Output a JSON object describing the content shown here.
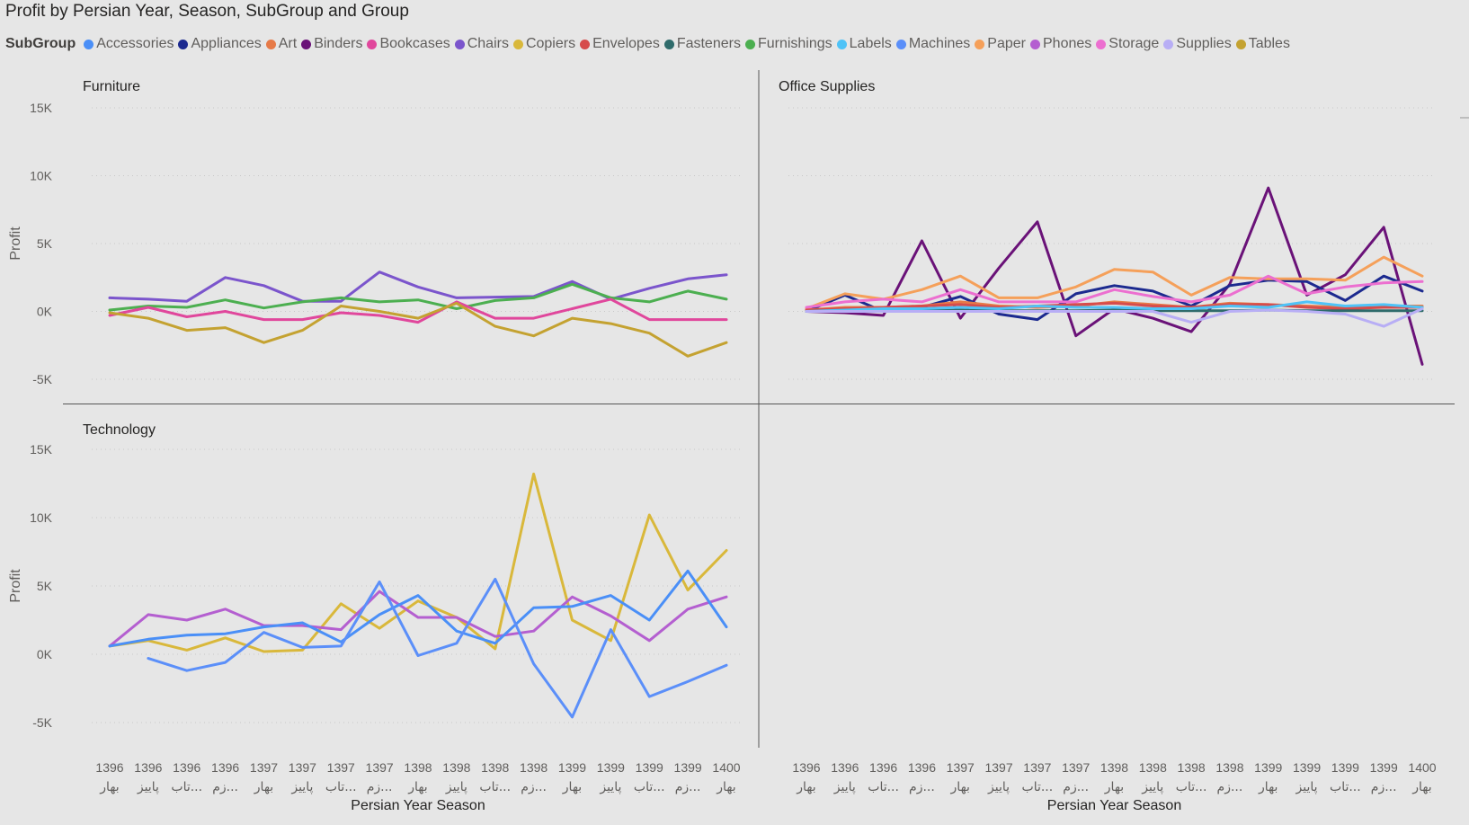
{
  "chart_data": {
    "type": "line",
    "title": "Profit by Persian Year, Season, SubGroup and Group",
    "legend_title": "SubGroup",
    "legend": [
      {
        "name": "Accessories",
        "color": "#4a8ff7"
      },
      {
        "name": "Appliances",
        "color": "#1c2a8f"
      },
      {
        "name": "Art",
        "color": "#e67a48"
      },
      {
        "name": "Binders",
        "color": "#6a1278"
      },
      {
        "name": "Bookcases",
        "color": "#e0479c"
      },
      {
        "name": "Chairs",
        "color": "#7b55cc"
      },
      {
        "name": "Copiers",
        "color": "#d9b83b"
      },
      {
        "name": "Envelopes",
        "color": "#d64c4c"
      },
      {
        "name": "Fasteners",
        "color": "#2f6b6b"
      },
      {
        "name": "Furnishings",
        "color": "#4caf50"
      },
      {
        "name": "Labels",
        "color": "#4fc3f7"
      },
      {
        "name": "Machines",
        "color": "#5b8ff9"
      },
      {
        "name": "Paper",
        "color": "#f5a05a"
      },
      {
        "name": "Phones",
        "color": "#b45fd0"
      },
      {
        "name": "Storage",
        "color": "#ec6fd0"
      },
      {
        "name": "Supplies",
        "color": "#b8aef5"
      },
      {
        "name": "Tables",
        "color": "#c4a231"
      }
    ],
    "x": [
      [
        "1396",
        "بهار"
      ],
      [
        "1396",
        "پاییز"
      ],
      [
        "1396",
        "تاب..."
      ],
      [
        "1396",
        "زم..."
      ],
      [
        "1397",
        "بهار"
      ],
      [
        "1397",
        "پاییز"
      ],
      [
        "1397",
        "تاب..."
      ],
      [
        "1397",
        "زم..."
      ],
      [
        "1398",
        "بهار"
      ],
      [
        "1398",
        "پاییز"
      ],
      [
        "1398",
        "تاب..."
      ],
      [
        "1398",
        "زم..."
      ],
      [
        "1399",
        "بهار"
      ],
      [
        "1399",
        "پاییز"
      ],
      [
        "1399",
        "تاب..."
      ],
      [
        "1399",
        "زم..."
      ],
      [
        "1400",
        "بهار"
      ]
    ],
    "xlabel": "Persian Year Season",
    "ylabel": "Profit",
    "ylim": [
      -6000,
      15000
    ],
    "yticks": [
      15000,
      10000,
      5000,
      0,
      -5000
    ],
    "ytick_labels": [
      "15K",
      "10K",
      "5K",
      "0K",
      "-5K"
    ],
    "panels": [
      {
        "name": "Furniture",
        "series": [
          {
            "name": "Chairs",
            "values": [
              1000,
              900,
              750,
              2500,
              1900,
              750,
              750,
              2900,
              1800,
              1000,
              1050,
              1100,
              2200,
              900,
              1700,
              2400,
              2700
            ]
          },
          {
            "name": "Furnishings",
            "values": [
              100,
              400,
              300,
              850,
              250,
              700,
              1000,
              700,
              850,
              200,
              800,
              1000,
              2000,
              1000,
              700,
              1500,
              900
            ]
          },
          {
            "name": "Bookcases",
            "values": [
              -300,
              300,
              -400,
              0,
              -600,
              -600,
              -100,
              -300,
              -800,
              700,
              -500,
              -500,
              200,
              900,
              -600,
              -600,
              -600
            ]
          },
          {
            "name": "Tables",
            "values": [
              -100,
              -500,
              -1400,
              -1200,
              -2300,
              -1400,
              400,
              0,
              -500,
              600,
              -1100,
              -1800,
              -500,
              -900,
              -1600,
              -3300,
              -2300
            ]
          }
        ]
      },
      {
        "name": "Office Supplies",
        "series": [
          {
            "name": "Binders",
            "values": [
              0,
              -100,
              -300,
              5200,
              -500,
              3200,
              6600,
              -1800,
              200,
              -500,
              -1500,
              2000,
              9100,
              1200,
              2700,
              6200,
              -3900
            ]
          },
          {
            "name": "Appliances",
            "values": [
              0,
              1200,
              0,
              300,
              1100,
              -200,
              -600,
              1300,
              1900,
              1500,
              400,
              1900,
              2300,
              2200,
              800,
              2600,
              1500
            ]
          },
          {
            "name": "Paper",
            "values": [
              200,
              1300,
              900,
              1600,
              2600,
              1000,
              1000,
              1800,
              3100,
              2900,
              1200,
              2500,
              2400,
              2400,
              2300,
              4000,
              2600
            ]
          },
          {
            "name": "Storage",
            "values": [
              300,
              700,
              900,
              700,
              1600,
              700,
              700,
              700,
              1600,
              1100,
              700,
              1200,
              2600,
              1300,
              1800,
              2100,
              2200
            ]
          },
          {
            "name": "Art",
            "values": [
              100,
              300,
              300,
              400,
              700,
              400,
              300,
              400,
              700,
              500,
              300,
              600,
              500,
              400,
              300,
              400,
              400
            ]
          },
          {
            "name": "Envelopes",
            "values": [
              100,
              200,
              300,
              400,
              500,
              300,
              400,
              500,
              600,
              400,
              300,
              500,
              500,
              300,
              200,
              300,
              300
            ]
          },
          {
            "name": "Fasteners",
            "values": [
              0,
              50,
              50,
              50,
              100,
              50,
              50,
              50,
              100,
              50,
              50,
              50,
              100,
              50,
              50,
              50,
              50
            ]
          },
          {
            "name": "Labels",
            "values": [
              0,
              100,
              200,
              200,
              300,
              200,
              400,
              300,
              300,
              200,
              200,
              400,
              300,
              700,
              400,
              500,
              300
            ]
          },
          {
            "name": "Supplies",
            "values": [
              0,
              0,
              0,
              0,
              0,
              0,
              0,
              0,
              0,
              0,
              -800,
              0,
              100,
              0,
              -200,
              -1100,
              200
            ]
          }
        ]
      },
      {
        "name": "Technology",
        "series": [
          {
            "name": "Copiers",
            "values": [
              600,
              1000,
              300,
              1200,
              200,
              300,
              3700,
              1900,
              3900,
              2700,
              400,
              13200,
              2500,
              1000,
              10200,
              4700,
              7600
            ]
          },
          {
            "name": "Phones",
            "values": [
              600,
              2900,
              2500,
              3300,
              2100,
              2100,
              1800,
              4600,
              2700,
              2700,
              1300,
              1700,
              4200,
              2800,
              1000,
              3300,
              4200
            ]
          },
          {
            "name": "Accessories",
            "values": [
              600,
              1100,
              1400,
              1500,
              2000,
              2300,
              900,
              2900,
              4300,
              1700,
              800,
              3400,
              3500,
              4300,
              2500,
              6100,
              2000
            ]
          },
          {
            "name": "Machines",
            "values": [
              null,
              -300,
              -1200,
              -600,
              1600,
              500,
              600,
              5300,
              -100,
              800,
              5500,
              -700,
              -4600,
              1800,
              -3100,
              -2000,
              -800
            ]
          }
        ]
      }
    ]
  }
}
